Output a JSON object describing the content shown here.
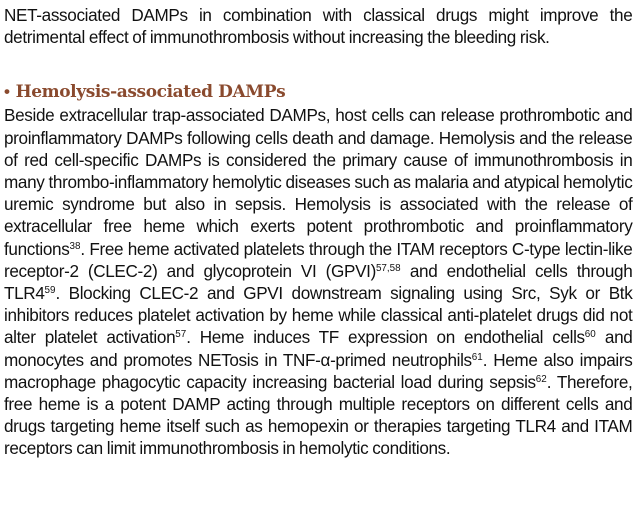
{
  "intro_paragraph": "NET-associated DAMPs in combination with classical drugs might improve the detrimental effect of immunothrombosis without increasing the bleeding risk.",
  "section": {
    "bullet": "•",
    "heading": "Hemolysis-associated DAMPs"
  },
  "body": {
    "s1": "Beside extracellular trap-associated DAMPs, host cells can release prothrombotic and proinflammatory DAMPs following cells death and damage. Hemolysis and the release of red cell-specific DAMPs is considered the primary cause of immunothrombosis in many thrombo-inflammatory hemolytic diseases such as malaria and atypical hemolytic uremic syndrome but also in sepsis. Hemolysis is associated with the release of extracellular free heme which exerts potent prothrombotic and proinflammatory functions",
    "r1": "38",
    "s2": ". Free heme activated platelets through the ITAM receptors C-type lectin-like receptor-2 (CLEC-2) and glycoprotein VI (GPVI)",
    "r2": "57,58",
    "s3": " and endothelial cells through TLR4",
    "r3": "59",
    "s4": ". Blocking CLEC-2 and GPVI downstream signaling using Src, Syk or Btk inhibitors reduces platelet activation by heme while classical anti-platelet drugs did not alter platelet activation",
    "r4": "57",
    "s5": ". Heme induces TF expression on endothelial cells",
    "r5": "60",
    "s6": " and monocytes and promotes NETosis in TNF-α-primed neutrophils",
    "r6": "61",
    "s7": ". Heme also impairs macrophage phagocytic capacity increasing bacterial load during sepsis",
    "r7": "62",
    "s8": ". Therefore, free heme is a potent DAMP acting through multiple receptors on different cells and drugs targeting heme itself such as hemopexin or therapies targeting TLR4 and ITAM receptors can limit immunothrombosis in hemolytic conditions."
  }
}
